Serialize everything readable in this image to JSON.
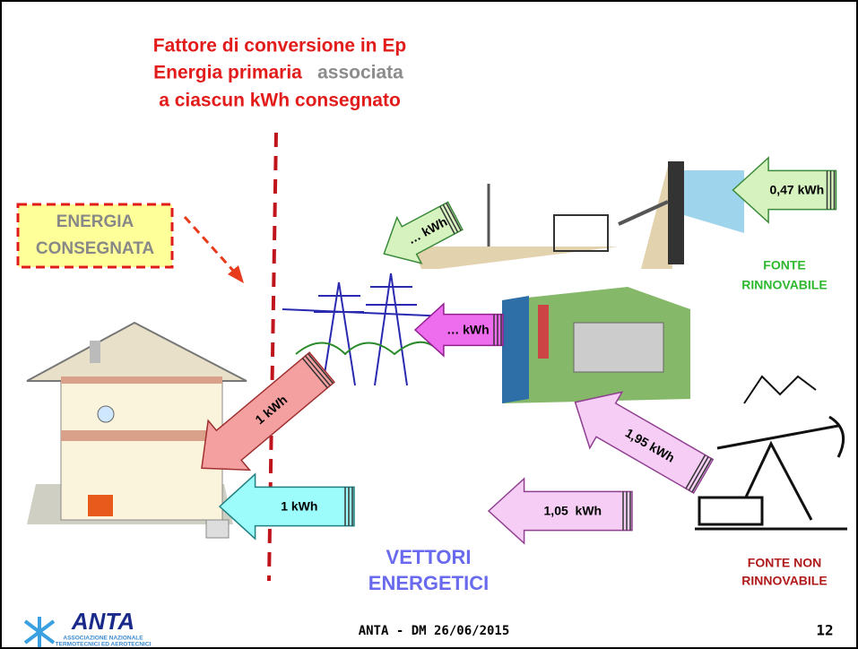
{
  "title": {
    "line1": "Fattore di conversione in Ep",
    "line2a": "Energia primaria",
    "line2b": "associata",
    "line3": "a ciascun kWh consegnato"
  },
  "labels": {
    "energia_consegnata": [
      "ENERGIA",
      "CONSEGNATA"
    ],
    "fonte_rinnovabile": [
      "FONTE",
      "RINNOVABILE"
    ],
    "fonte_non_rinnovabile": [
      "FONTE NON",
      "RINNOVABILE"
    ],
    "vettori": [
      "VETTORI",
      "ENERGETICI"
    ]
  },
  "arrows": [
    {
      "label": "0,47 kWh"
    },
    {
      "label": "… kWh"
    },
    {
      "label": "… kWh"
    },
    {
      "label": "1 kWh"
    },
    {
      "label": "1 kWh"
    },
    {
      "label": "1,95 kWh"
    },
    {
      "label": "1,05  kWh"
    }
  ],
  "footer": {
    "text": "ANTA - DM 26/06/2015",
    "page": "12"
  },
  "logo": {
    "name": "ANTA",
    "line1": "ASSOCIAZIONE NAZIONALE",
    "line2": "TERMOTECNICI ED AEROTECNICI"
  }
}
